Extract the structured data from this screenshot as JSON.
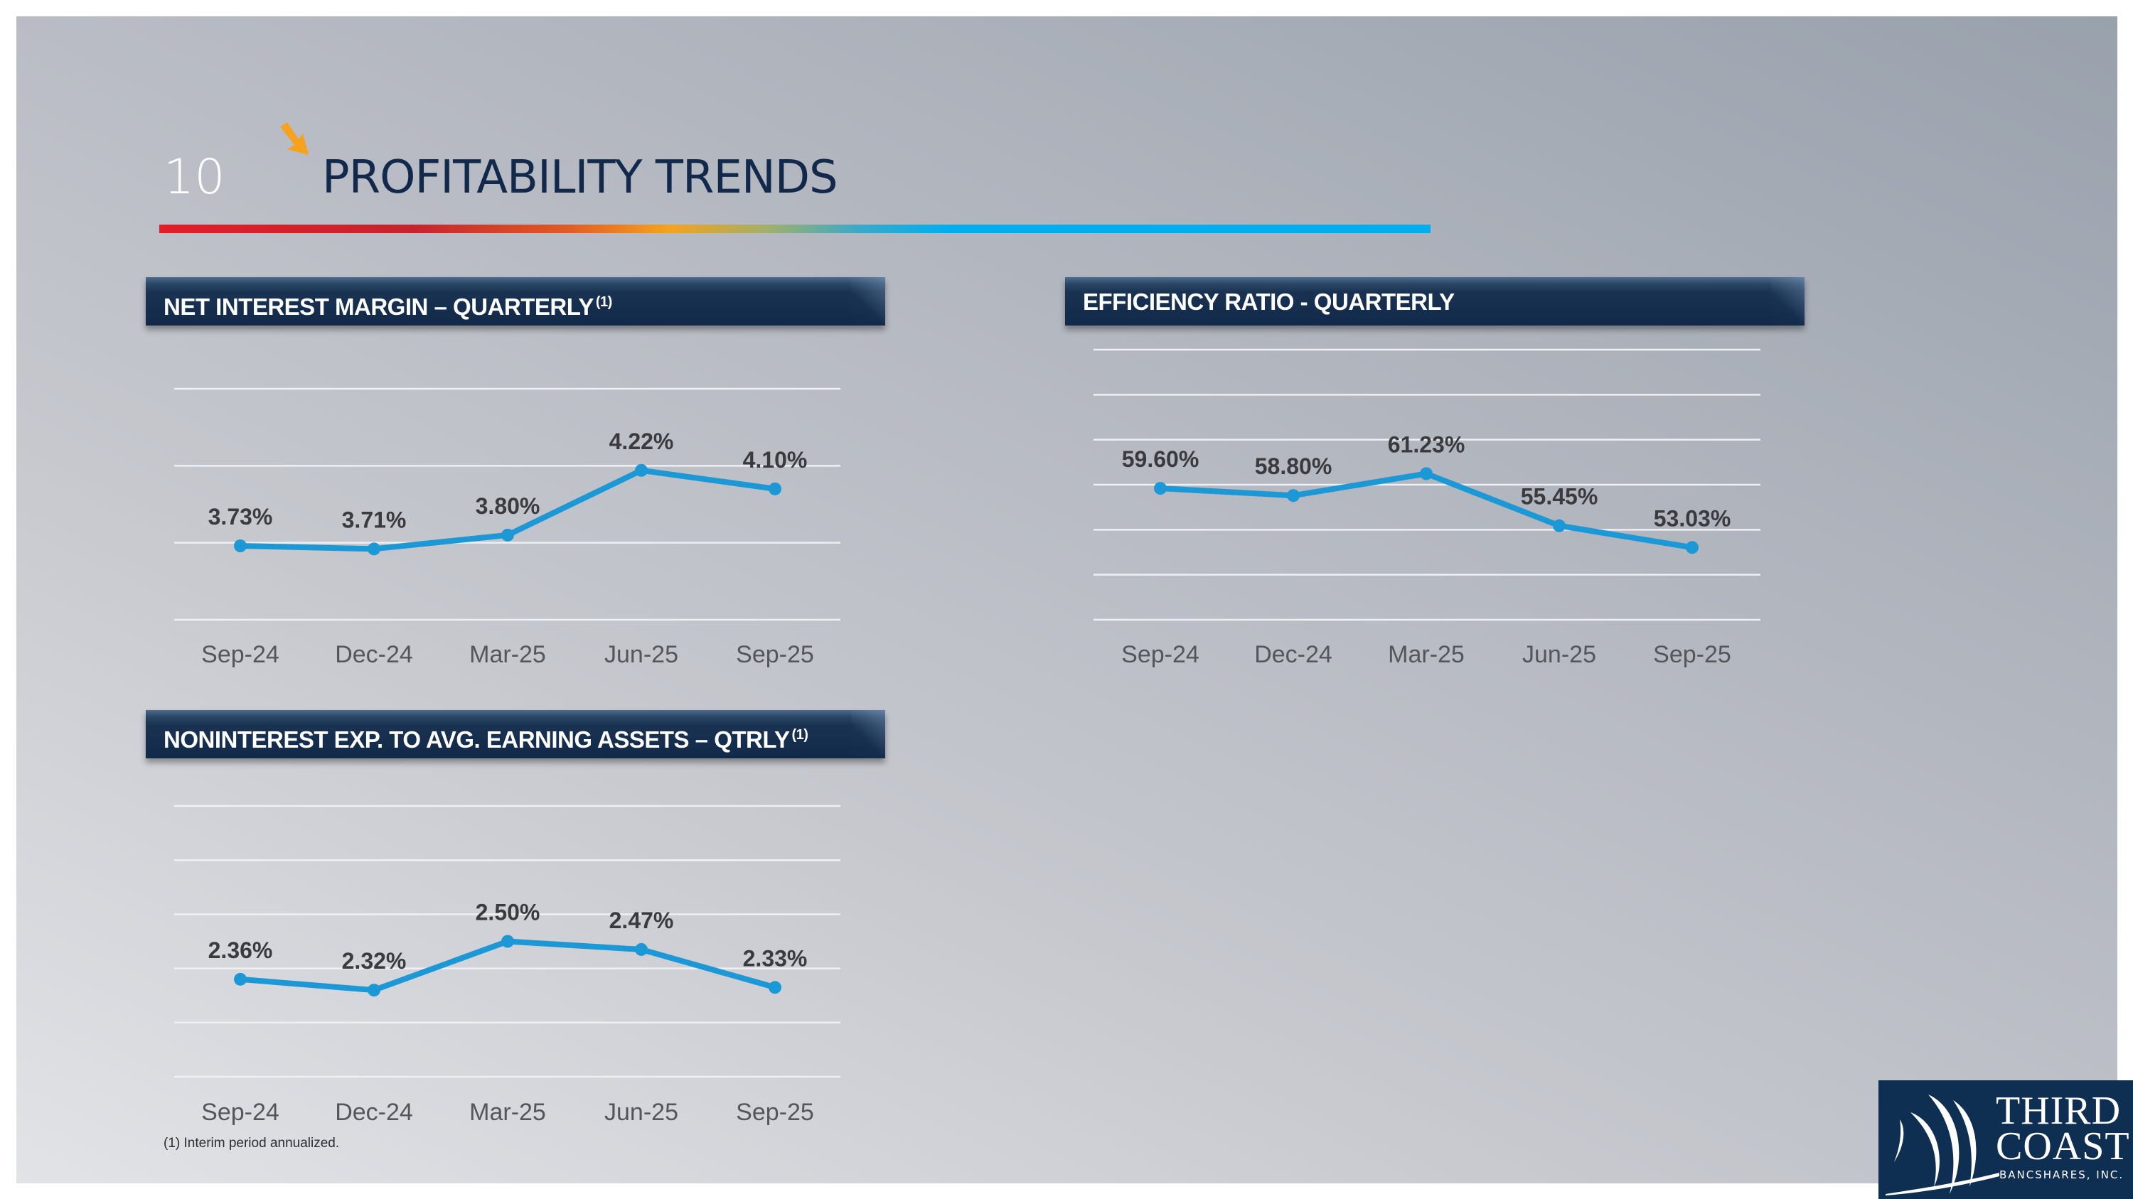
{
  "slide": {
    "page_number": "10",
    "title": "PROFITABILITY TRENDS",
    "footnote": "(1) Interim period annualized.",
    "logo": {
      "line1": "THIRD",
      "line2": "COAST",
      "line3": "BANCSHARES, INC."
    },
    "colors": {
      "title": "#13294b",
      "accent_arrow": "#f6a21c",
      "series": "#1b98d5",
      "header_bar": "#12294a",
      "label": "#3a3a3f",
      "tick": "#55565c"
    }
  },
  "chart_data": [
    {
      "type": "line",
      "title": "NET INTEREST MARGIN – QUARTERLY",
      "title_superscript": "(1)",
      "categories": [
        "Sep-24",
        "Dec-24",
        "Mar-25",
        "Jun-25",
        "Sep-25"
      ],
      "values": [
        3.73,
        3.71,
        3.8,
        4.22,
        4.1
      ],
      "labels": [
        "3.73%",
        "3.71%",
        "3.80%",
        "4.22%",
        "4.10%"
      ],
      "xlabel": "",
      "ylabel": "",
      "ylim": [
        3.25,
        4.75
      ],
      "yticks": [
        3.25,
        3.75,
        4.25,
        4.75
      ],
      "grid": true,
      "legend": "none"
    },
    {
      "type": "line",
      "title": "EFFICIENCY RATIO - QUARTERLY",
      "title_superscript": "",
      "categories": [
        "Sep-24",
        "Dec-24",
        "Mar-25",
        "Jun-25",
        "Sep-25"
      ],
      "values": [
        59.6,
        58.8,
        61.23,
        55.45,
        53.03
      ],
      "labels": [
        "59.60%",
        "58.80%",
        "61.23%",
        "55.45%",
        "53.03%"
      ],
      "xlabel": "",
      "ylabel": "",
      "ylim": [
        45,
        75
      ],
      "yticks": [
        45,
        50,
        55,
        60,
        65,
        70,
        75
      ],
      "grid": true,
      "legend": "none"
    },
    {
      "type": "line",
      "title": "NONINTEREST EXP. TO AVG. EARNING ASSETS – QTRLY",
      "title_superscript": "(1)",
      "categories": [
        "Sep-24",
        "Dec-24",
        "Mar-25",
        "Jun-25",
        "Sep-25"
      ],
      "values": [
        2.36,
        2.32,
        2.5,
        2.47,
        2.33
      ],
      "labels": [
        "2.36%",
        "2.32%",
        "2.50%",
        "2.47%",
        "2.33%"
      ],
      "xlabel": "",
      "ylabel": "",
      "ylim": [
        2.0,
        3.0
      ],
      "yticks": [
        2.0,
        2.2,
        2.4,
        2.6,
        2.8,
        3.0
      ],
      "grid": true,
      "legend": "none"
    }
  ]
}
